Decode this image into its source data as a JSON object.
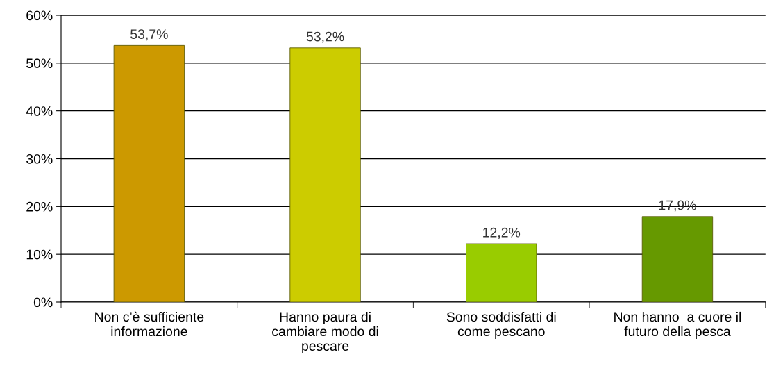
{
  "chart_data": {
    "type": "bar",
    "categories": [
      "Non c’è sufficiente\ninformazione",
      "Hanno paura di\ncambiare modo di\npescare",
      "Sono soddisfatti di\ncome pescano",
      "Non hanno  a cuore il\nfuturo della pesca"
    ],
    "values": [
      53.7,
      53.2,
      12.2,
      17.9
    ],
    "colors": [
      "#cc9900",
      "#cccc00",
      "#99cc00",
      "#669900"
    ],
    "value_labels": [
      "53,7%",
      "53,2%",
      "12,2%",
      "17,9%"
    ],
    "ylim": [
      0,
      60
    ],
    "yticks": [
      {
        "value": 0,
        "label": "0%"
      },
      {
        "value": 10,
        "label": "10%"
      },
      {
        "value": 20,
        "label": "20%"
      },
      {
        "value": 30,
        "label": "30%"
      },
      {
        "value": 40,
        "label": "40%"
      },
      {
        "value": 50,
        "label": "50%"
      },
      {
        "value": 60,
        "label": "60%"
      }
    ],
    "grid": "y",
    "legend": false
  }
}
